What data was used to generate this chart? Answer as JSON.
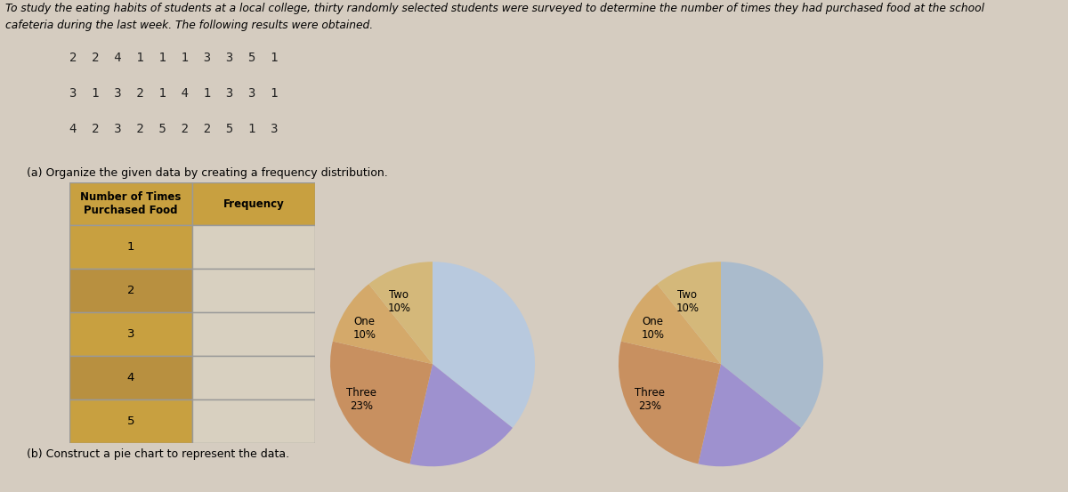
{
  "title_line1": "To study the eating habits of students at a local college, thirty randomly selected students were surveyed to determine the number of times they had purchased food at the school",
  "title_line2": "cafeteria during the last week. The following results were obtained.",
  "data_rows": [
    "2  2  4  1  1  1  3  3  5  1",
    "3  1  3  2  1  4  1  3  3  1",
    "4  2  3  2  5  2  2  5  1  3"
  ],
  "part_a_label": "(a) Organize the given data by creating a frequency distribution.",
  "table_header": [
    "Number of Times\nPurchased Food",
    "Frequency"
  ],
  "table_rows": [
    "1",
    "2",
    "3",
    "4",
    "5"
  ],
  "part_b_label": "(b) Construct a pie chart to represent the data.",
  "pie_values": [
    10,
    5,
    7,
    3,
    3
  ],
  "pie_wedge_labels": [
    "",
    "",
    "Three\n23%",
    "One\n10%",
    "Two\n10%"
  ],
  "pie_colors1": [
    "#b8c9de",
    "#9e91cf",
    "#c89060",
    "#d4a96a",
    "#d4b87a"
  ],
  "pie_colors2": [
    "#aabbcc",
    "#9e91cf",
    "#c89060",
    "#d4a96a",
    "#d4b87a"
  ],
  "bg_color": "#d5ccc0",
  "table_header_bg": "#c8a040",
  "table_num_bg": "#c8a040",
  "table_freq_bg": "#d8d0c0",
  "table_border_color": "#999999",
  "header_text_color": "#000000",
  "body_text_color": "#222222"
}
